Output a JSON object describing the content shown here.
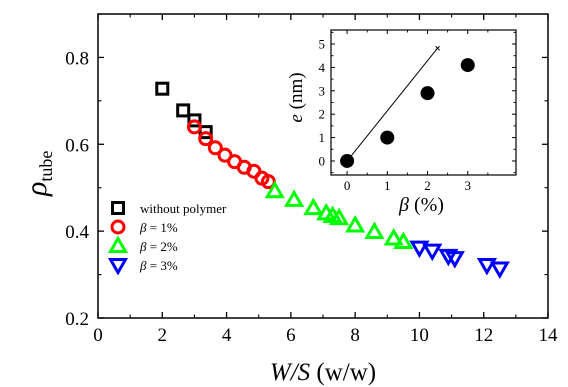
{
  "chart_data": [
    {
      "type": "scatter",
      "xlabel": {
        "var": "W/S",
        "unit": " (w/w)"
      },
      "ylabel": {
        "symbol": "ρ",
        "subscript": "tube"
      },
      "xlim": [
        0,
        14
      ],
      "ylim": [
        0.2,
        0.9
      ],
      "xticks": [
        0,
        2,
        4,
        6,
        8,
        10,
        12,
        14
      ],
      "yticks": [
        0.2,
        0.4,
        0.6,
        0.8
      ],
      "legend_position": "lower-left",
      "series": [
        {
          "name": "without polymer",
          "marker": "square",
          "color": "#000000",
          "x": [
            2.0,
            2.65,
            3.0,
            3.35
          ],
          "y": [
            0.728,
            0.678,
            0.655,
            0.628
          ]
        },
        {
          "name": "β = 1%",
          "marker": "circle",
          "color": "#ff0000",
          "x": [
            3.0,
            3.35,
            3.65,
            3.95,
            4.25,
            4.55,
            4.85,
            5.1,
            5.3
          ],
          "y": [
            0.64,
            0.613,
            0.592,
            0.575,
            0.56,
            0.547,
            0.538,
            0.522,
            0.514
          ]
        },
        {
          "name": "β = 2%",
          "marker": "triangle-up",
          "color": "#00ff00",
          "x": [
            5.5,
            6.1,
            6.7,
            7.1,
            7.3,
            7.5,
            8.0,
            8.6,
            9.2,
            9.5
          ],
          "y": [
            0.492,
            0.472,
            0.453,
            0.441,
            0.435,
            0.43,
            0.413,
            0.398,
            0.383,
            0.375
          ]
        },
        {
          "name": "β = 3%",
          "marker": "triangle-down",
          "color": "#0000ff",
          "x": [
            10.0,
            10.4,
            10.9,
            11.1,
            12.1,
            12.5
          ],
          "y": [
            0.362,
            0.355,
            0.343,
            0.338,
            0.322,
            0.314
          ]
        }
      ]
    },
    {
      "type": "scatter",
      "xlabel": {
        "symbol": "β",
        "unit": " (%)"
      },
      "ylabel": {
        "symbol": "e",
        "unit": " (nm)"
      },
      "xlim": [
        -0.4,
        4.2
      ],
      "ylim": [
        -0.6,
        5.6
      ],
      "xticks": [
        0,
        1,
        2,
        3
      ],
      "yticks": [
        0,
        1,
        2,
        3,
        4,
        5
      ],
      "points": {
        "x": [
          0,
          1,
          2,
          3
        ],
        "y": [
          0.0,
          1.0,
          2.9,
          4.1
        ],
        "color": "#000000"
      },
      "fit_line": {
        "x": [
          0,
          2.25
        ],
        "y": [
          0,
          4.82
        ],
        "color": "#000000"
      }
    }
  ]
}
